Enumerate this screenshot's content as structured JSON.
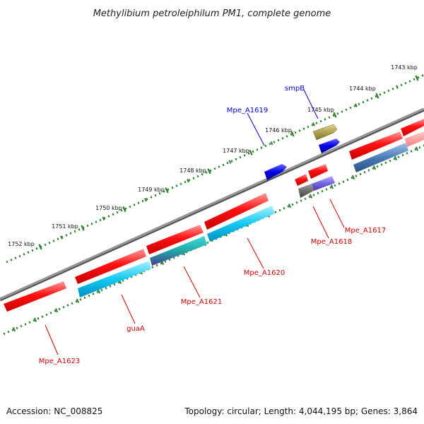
{
  "title": "Methylibium petroleiphilum PM1, complete genome",
  "footer": {
    "accession": "Accession: NC_008825",
    "stats": "Topology: circular; Length: 4,044,195 bp; Genes: 3,864"
  },
  "ticks": [
    {
      "label": "1743 kbp"
    },
    {
      "label": "1744 kbp"
    },
    {
      "label": "1745 kbp"
    },
    {
      "label": "1746 kbp"
    },
    {
      "label": "1747 kbp"
    },
    {
      "label": "1748 kbp"
    },
    {
      "label": "1749 kbp"
    },
    {
      "label": "1750 kbp"
    },
    {
      "label": "1751 kbp"
    },
    {
      "label": "1752 kbp"
    }
  ],
  "gene_labels": {
    "smpB": "smpB",
    "Mpe_A1619": "Mpe_A1619",
    "Mpe_A1617": "Mpe_A1617",
    "Mpe_A1618": "Mpe_A1618",
    "Mpe_A1620": "Mpe_A1620",
    "Mpe_A1621": "Mpe_A1621",
    "guaA": "guaA",
    "Mpe_A1623": "Mpe_A1623"
  },
  "colors": {
    "backbone": "#808080",
    "tick_track": "#2a7f2a",
    "gene_red": "#ff0000",
    "cds_cyan": "#00c8f0",
    "forward_blue": "#0000e0",
    "label_red": "#cc0000",
    "label_blue": "#0000cc",
    "olive": "#a89c40",
    "steel_blue": "#4a7ab0",
    "purple": "#7060d0"
  }
}
